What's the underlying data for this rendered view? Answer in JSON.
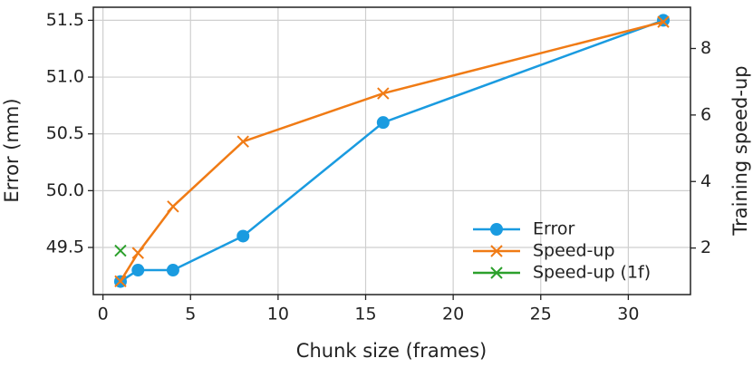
{
  "chart_data": {
    "type": "line",
    "xlabel": "Chunk size (frames)",
    "ylabel": "Error (mm)",
    "y2label": "Training speed-up",
    "xlim": [
      -0.55,
      33.55
    ],
    "xticks": [
      0,
      5,
      10,
      15,
      20,
      25,
      30
    ],
    "ylim": [
      49.085,
      51.615
    ],
    "yticks": [
      49.5,
      {
        "value": 50.0,
        "label": "50.0"
      },
      50.5,
      {
        "value": 51.0,
        "label": "51.0"
      },
      51.5
    ],
    "y2lim": [
      0.6,
      9.24
    ],
    "y2ticks": [
      2,
      4,
      6,
      8
    ],
    "grid": true,
    "legend": "lower right",
    "series": [
      {
        "name": "Error",
        "color": "#1a9be0",
        "marker": "o",
        "x": [
          1,
          2,
          4,
          8,
          16,
          32
        ],
        "values": [
          49.2,
          49.3,
          49.3,
          49.6,
          50.6,
          51.5
        ]
      },
      {
        "name": "Speed-up",
        "color": "#f07b15",
        "marker": "x",
        "axis": "y2",
        "x": [
          1,
          2,
          4,
          8,
          16,
          32
        ],
        "values": [
          1.0,
          1.85,
          3.25,
          5.2,
          6.65,
          8.8
        ]
      },
      {
        "name": "Speed-up (1f)",
        "color": "#2ca02c",
        "marker": "x",
        "axis": "y2",
        "x": [
          1
        ],
        "values": [
          1.92
        ]
      }
    ]
  }
}
